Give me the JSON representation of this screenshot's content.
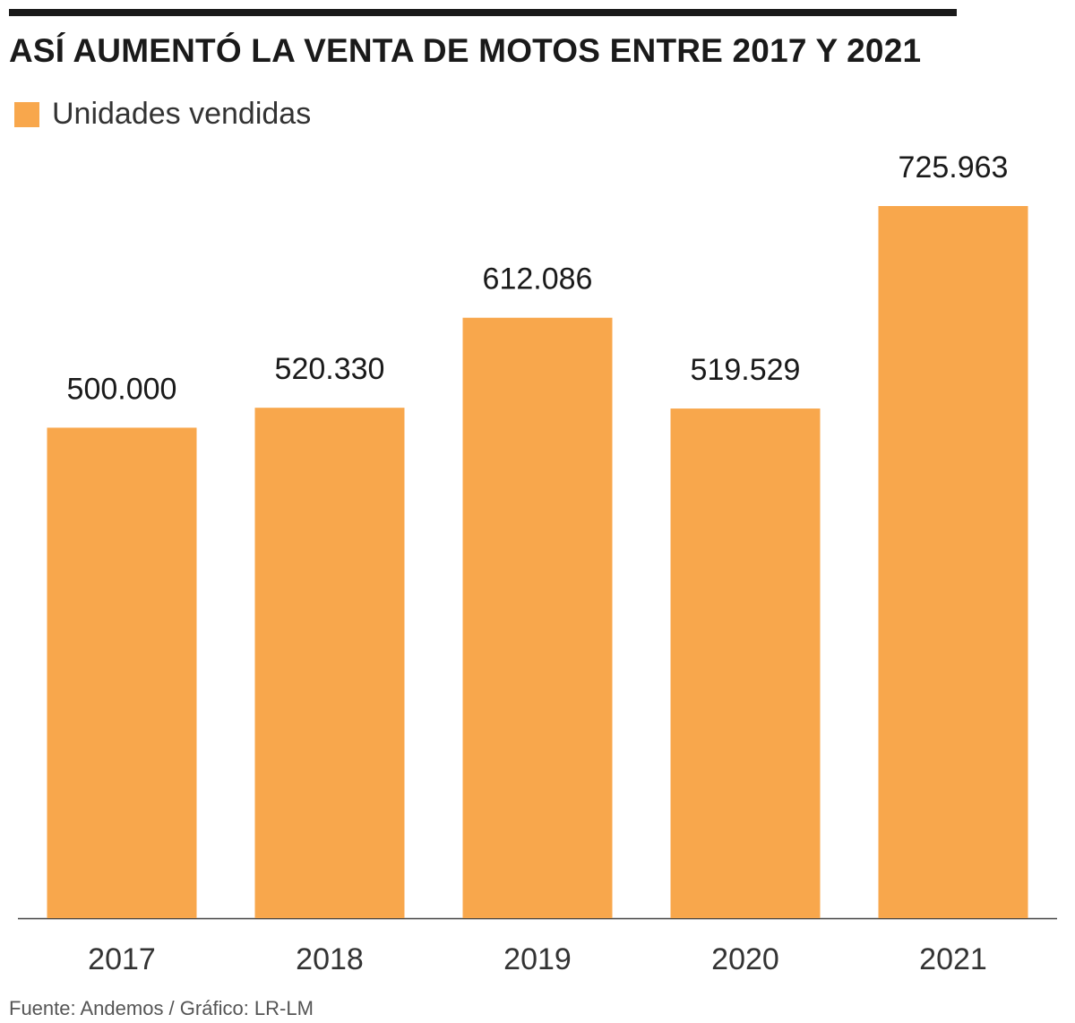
{
  "title": "ASÍ AUMENTÓ LA VENTA DE MOTOS ENTRE 2017 Y 2021",
  "legend_label": "Unidades vendidas",
  "source": "Fuente: Andemos / Gráfico: LR-LM",
  "colors": {
    "bar": "#F8A74C",
    "text": "#1a1a1a",
    "axis": "#444444"
  },
  "chart_data": {
    "type": "bar",
    "categories": [
      "2017",
      "2018",
      "2019",
      "2020",
      "2021"
    ],
    "series": [
      {
        "name": "Unidades vendidas",
        "values": [
          500000,
          520330,
          612086,
          519529,
          725963
        ]
      }
    ],
    "value_labels": [
      "500.000",
      "520.330",
      "612.086",
      "519.529",
      "725.963"
    ],
    "ylim": [
      0,
      725963
    ],
    "grid": false,
    "legend_position": "top-left"
  }
}
